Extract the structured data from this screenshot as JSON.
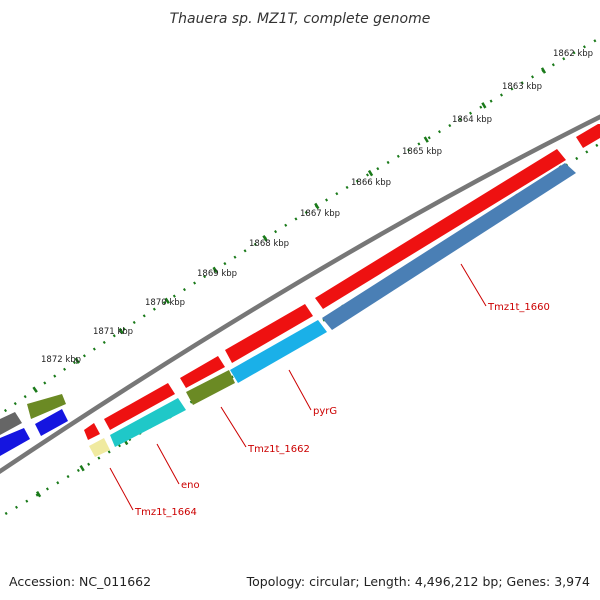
{
  "title": "Thauera sp. MZ1T, complete genome",
  "footer": {
    "accession": "Accession: NC_011662",
    "summary": "Topology: circular; Length: 4,496,212 bp; Genes: 3,974"
  },
  "ticks": [
    "1862 kbp",
    "1863 kbp",
    "1864 kbp",
    "1865 kbp",
    "1866 kbp",
    "1867 kbp",
    "1868 kbp",
    "1869 kbp",
    "1870 kbp",
    "1871 kbp",
    "1872 kbp"
  ],
  "genes": [
    {
      "label": "Tmz1t_1660",
      "color": "#4a7fb5"
    },
    {
      "label": "pyrG",
      "color": "#1ab0e8"
    },
    {
      "label": "Tmz1t_1662",
      "color": "#6b8a24"
    },
    {
      "label": "eno",
      "color": "#1fc8c8"
    },
    {
      "label": "Tmz1t_1664",
      "color": "#f0eaa0"
    }
  ],
  "colors": {
    "forward_strand": "#ee1111",
    "backbone": "#777777",
    "tick_marks": "#1a7a1a",
    "unlabeled_grey": "#666666",
    "unlabeled_blue": "#1515e0"
  }
}
